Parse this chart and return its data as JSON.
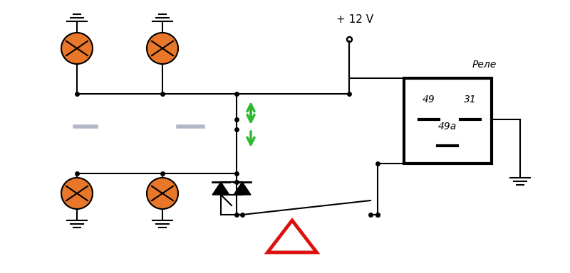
{
  "bg_color": "#ffffff",
  "lamp_color": "#e8772a",
  "wire_color": "#000000",
  "green_color": "#2db832",
  "red_color": "#dd1010",
  "relay_label": "Реле",
  "voltage_label": "+ 12 V",
  "pin49": "49",
  "pin31": "31",
  "pin49a": "49a",
  "fig_w": 8.0,
  "fig_h": 3.84,
  "dpi": 100
}
